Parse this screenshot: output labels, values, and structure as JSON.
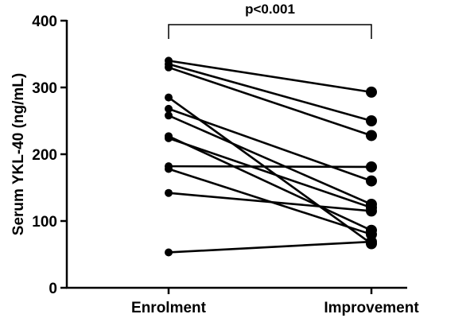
{
  "chart_data": {
    "type": "scatter",
    "style": "paired-before-after",
    "categories": [
      "Enrolment",
      "Improvement"
    ],
    "ylabel": "Serum YKL-40 (ng/mL)",
    "ylim": [
      0,
      400
    ],
    "yticks": [
      0,
      100,
      200,
      300,
      400
    ],
    "grid": false,
    "annotation": {
      "text": "p<0.001",
      "bracket": true
    },
    "pairs": [
      {
        "enrolment": 340,
        "improvement": 293
      },
      {
        "enrolment": 335,
        "improvement": 250
      },
      {
        "enrolment": 330,
        "improvement": 228
      },
      {
        "enrolment": 285,
        "improvement": 66
      },
      {
        "enrolment": 268,
        "improvement": 160
      },
      {
        "enrolment": 258,
        "improvement": 125
      },
      {
        "enrolment": 227,
        "improvement": 86
      },
      {
        "enrolment": 224,
        "improvement": 120
      },
      {
        "enrolment": 182,
        "improvement": 181
      },
      {
        "enrolment": 178,
        "improvement": 80
      },
      {
        "enrolment": 142,
        "improvement": 115
      },
      {
        "enrolment": 53,
        "improvement": 69
      }
    ]
  }
}
